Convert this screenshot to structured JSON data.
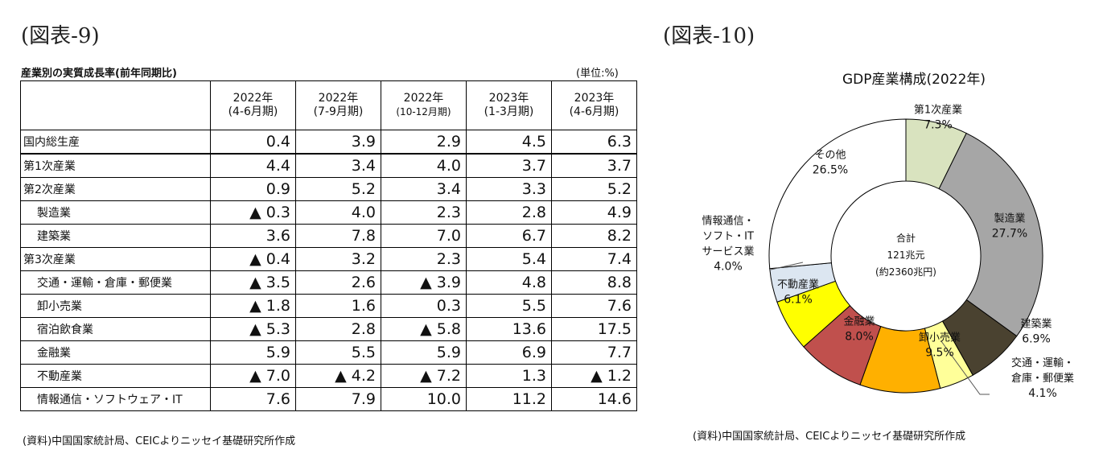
{
  "figure9": {
    "label": "(図表-9)",
    "caption": "産業別の実質成長率(前年同期比)",
    "unit": "(単位:%)",
    "source": "(資料)中国国家統計局、CEICよりニッセイ基礎研究所作成"
  },
  "figure10": {
    "label": "(図表-10)",
    "source": "(資料)中国国家統計局、CEICよりニッセイ基礎研究所作成"
  },
  "chart_data": [
    {
      "type": "table",
      "title": "産業別の実質成長率(前年同期比)",
      "unit": "(単位:%)",
      "columns": [
        {
          "year": "2022年",
          "period": "(4-6月期)"
        },
        {
          "year": "2022年",
          "period": "(7-9月期)"
        },
        {
          "year": "2022年",
          "period": "(10-12月期)"
        },
        {
          "year": "2023年",
          "period": "(1-3月期)"
        },
        {
          "year": "2023年",
          "period": "(4-6月期)"
        }
      ],
      "rows": [
        {
          "label": "国内総生産",
          "level": 0,
          "values": [
            "0.4",
            "3.9",
            "2.9",
            "4.5",
            "6.3"
          ]
        },
        {
          "label": "第1次産業",
          "level": 0,
          "values": [
            "4.4",
            "3.4",
            "4.0",
            "3.7",
            "3.7"
          ]
        },
        {
          "label": "第2次産業",
          "level": 0,
          "values": [
            "0.9",
            "5.2",
            "3.4",
            "3.3",
            "5.2"
          ]
        },
        {
          "label": "製造業",
          "level": 1,
          "values": [
            "▲ 0.3",
            "4.0",
            "2.3",
            "2.8",
            "4.9"
          ]
        },
        {
          "label": "建築業",
          "level": 1,
          "values": [
            "3.6",
            "7.8",
            "7.0",
            "6.7",
            "8.2"
          ]
        },
        {
          "label": "第3次産業",
          "level": 0,
          "values": [
            "▲ 0.4",
            "3.2",
            "2.3",
            "5.4",
            "7.4"
          ]
        },
        {
          "label": "交通・運輸・倉庫・郵便業",
          "level": 1,
          "values": [
            "▲ 3.5",
            "2.6",
            "▲ 3.9",
            "4.8",
            "8.8"
          ]
        },
        {
          "label": "卸小売業",
          "level": 1,
          "values": [
            "▲ 1.8",
            "1.6",
            "0.3",
            "5.5",
            "7.6"
          ]
        },
        {
          "label": "宿泊飲食業",
          "level": 1,
          "values": [
            "▲ 5.3",
            "2.8",
            "▲ 5.8",
            "13.6",
            "17.5"
          ]
        },
        {
          "label": "金融業",
          "level": 1,
          "values": [
            "5.9",
            "5.5",
            "5.9",
            "6.9",
            "7.7"
          ]
        },
        {
          "label": "不動産業",
          "level": 1,
          "values": [
            "▲ 7.0",
            "▲ 4.2",
            "▲ 7.2",
            "1.3",
            "▲ 1.2"
          ]
        },
        {
          "label": "情報通信・ソフトウェア・IT",
          "level": 1,
          "values": [
            "7.6",
            "7.9",
            "10.0",
            "11.2",
            "14.6"
          ]
        }
      ]
    },
    {
      "type": "pie",
      "title": "GDP産業構成(2022年)",
      "center_label": [
        "合計",
        "121兆元",
        "(約2360兆円)"
      ],
      "slices": [
        {
          "label": "第1次産業",
          "value": 7.3,
          "display": "7.3%",
          "color": "#d9e3bf"
        },
        {
          "label": "製造業",
          "value": 27.7,
          "display": "27.7%",
          "color": "#a6a6a6"
        },
        {
          "label": "建築業",
          "value": 6.9,
          "display": "6.9%",
          "color": "#4a4230"
        },
        {
          "label": "交通・運輸・倉庫・郵便業",
          "value": 4.1,
          "display": "4.1%",
          "color": "#ffff99",
          "label_lines": [
            "交通・運輸・",
            "倉庫・郵便業"
          ]
        },
        {
          "label": "卸小売業",
          "value": 9.5,
          "display": "9.5%",
          "color": "#ffb000"
        },
        {
          "label": "金融業",
          "value": 8.0,
          "display": "8.0%",
          "color": "#c0504d"
        },
        {
          "label": "不動産業",
          "value": 6.1,
          "display": "6.1%",
          "color": "#ffff00"
        },
        {
          "label": "情報通信・ソフト・ITサービス業",
          "value": 4.0,
          "display": "4.0%",
          "color": "#dce6f1",
          "label_lines": [
            "情報通信・",
            "ソフト・IT",
            "サービス業"
          ]
        },
        {
          "label": "その他",
          "value": 26.5,
          "display": "26.5%",
          "color": "#ffffff"
        }
      ]
    }
  ]
}
